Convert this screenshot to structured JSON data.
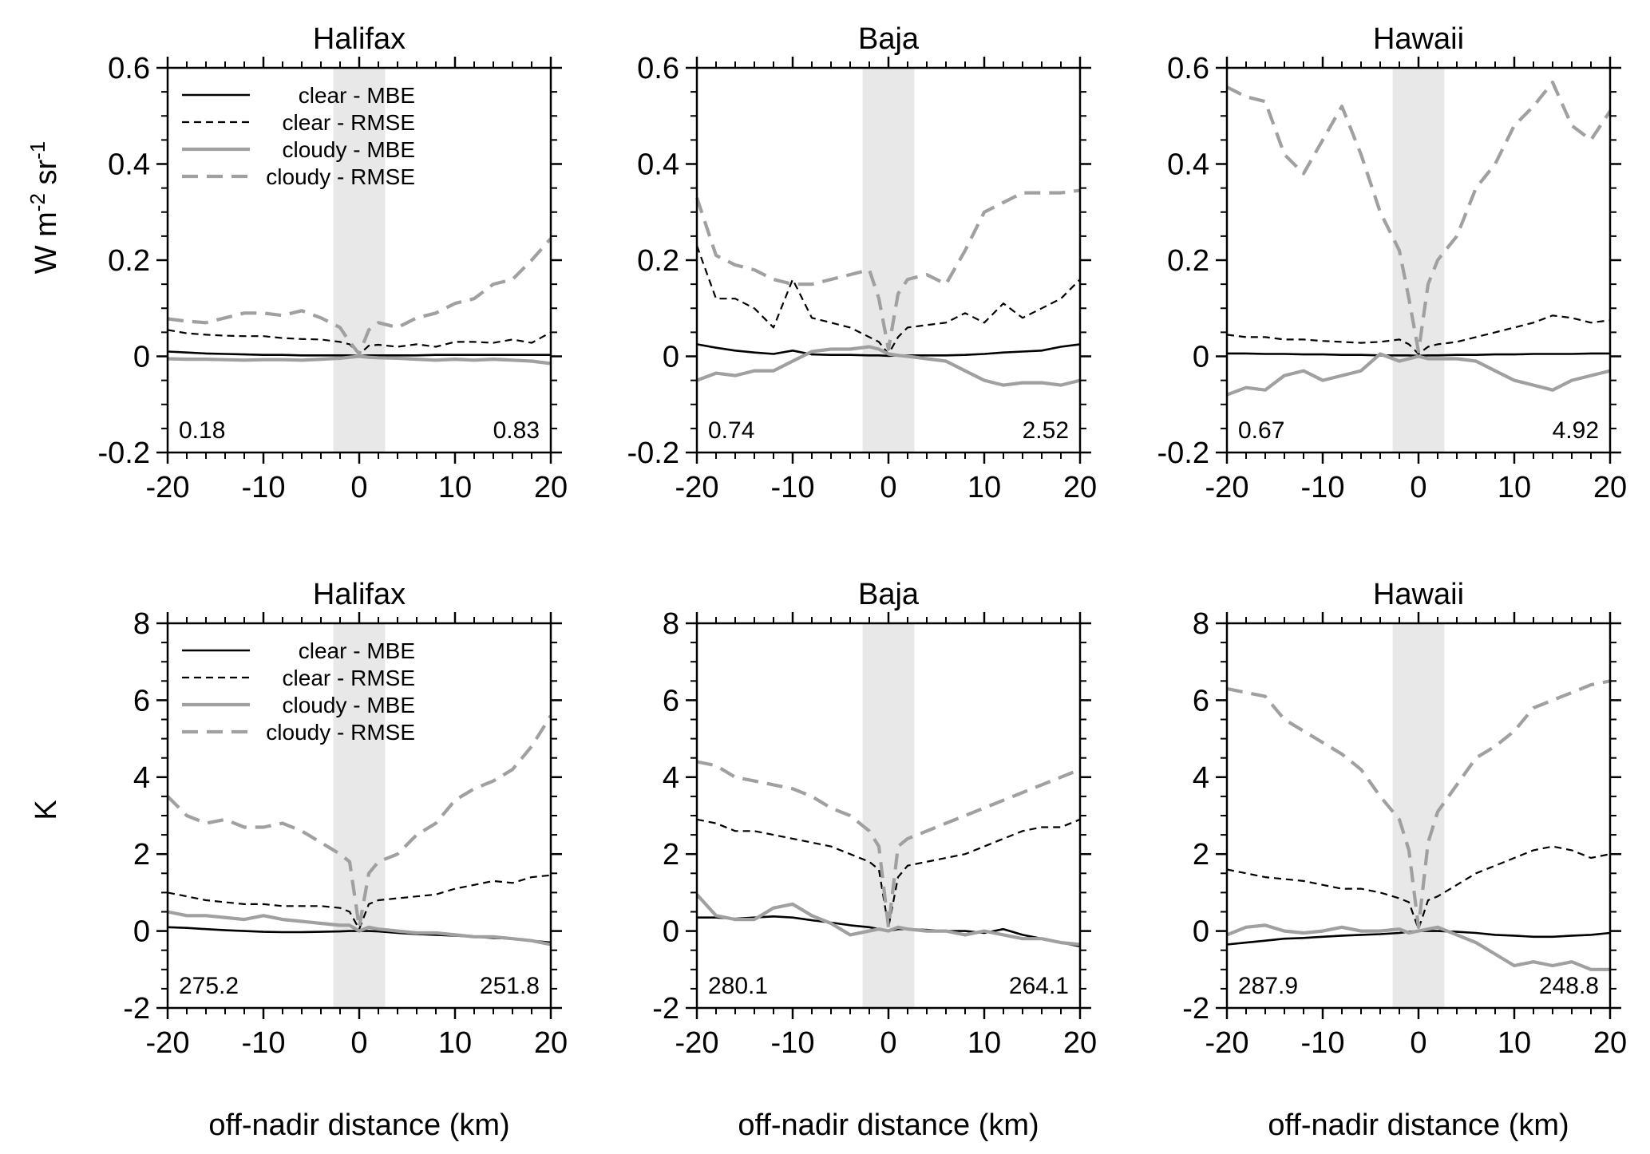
{
  "figure": {
    "top_ylabel_parts": [
      "W m",
      "-2",
      " sr",
      "-1"
    ],
    "bottom_ylabel": "K",
    "xlabel": "off-nadir distance (km)",
    "legend": [
      "clear - MBE",
      "clear - RMSE",
      "cloudy - MBE",
      "cloudy - RMSE"
    ],
    "colors": {
      "clear": "#000000",
      "cloudy": "#a0a0a0",
      "shade": "#e8e8e8"
    }
  },
  "chart_data": [
    {
      "type": "line",
      "title": "Halifax",
      "row": 0,
      "col": 0,
      "xlim": [
        -20,
        20
      ],
      "ylim": [
        -0.2,
        0.6
      ],
      "xticks": [
        "-20",
        "-10",
        "0",
        "10",
        "20"
      ],
      "yticks": [
        "-0.2",
        "0",
        "0.2",
        "0.4",
        "0.6"
      ],
      "shade": [
        -2.7,
        2.7
      ],
      "legend": true,
      "left_value": "0.18",
      "right_value": "0.83",
      "x": [
        -20,
        -18,
        -16,
        -14,
        -12,
        -10,
        -8,
        -6,
        -4,
        -2,
        -1,
        0,
        1,
        2,
        4,
        6,
        8,
        10,
        12,
        14,
        16,
        18,
        20
      ],
      "series": [
        {
          "name": "clear - MBE",
          "values": [
            0.01,
            0.008,
            0.006,
            0.005,
            0.004,
            0.003,
            0.003,
            0.002,
            0.002,
            0.002,
            0.002,
            0.001,
            0.002,
            0.002,
            0.002,
            0.002,
            0.003,
            0.003,
            0.003,
            0.003,
            0.003,
            0.003,
            0.003
          ]
        },
        {
          "name": "clear - RMSE",
          "values": [
            0.055,
            0.048,
            0.045,
            0.043,
            0.042,
            0.042,
            0.038,
            0.036,
            0.035,
            0.03,
            0.025,
            0.004,
            0.022,
            0.024,
            0.02,
            0.025,
            0.02,
            0.03,
            0.03,
            0.028,
            0.035,
            0.028,
            0.05
          ]
        },
        {
          "name": "cloudy - MBE",
          "values": [
            -0.005,
            -0.006,
            -0.006,
            -0.007,
            -0.008,
            -0.007,
            -0.007,
            -0.008,
            -0.006,
            -0.004,
            -0.002,
            0.0,
            -0.002,
            -0.003,
            -0.004,
            -0.006,
            -0.008,
            -0.006,
            -0.008,
            -0.006,
            -0.008,
            -0.01,
            -0.015
          ]
        },
        {
          "name": "cloudy - RMSE",
          "values": [
            0.078,
            0.073,
            0.07,
            0.08,
            0.09,
            0.09,
            0.085,
            0.095,
            0.08,
            0.06,
            0.03,
            0.005,
            0.055,
            0.07,
            0.06,
            0.08,
            0.09,
            0.11,
            0.12,
            0.15,
            0.16,
            0.2,
            0.245
          ]
        }
      ]
    },
    {
      "type": "line",
      "title": "Baja",
      "row": 0,
      "col": 1,
      "xlim": [
        -20,
        20
      ],
      "ylim": [
        -0.2,
        0.6
      ],
      "xticks": [
        "-20",
        "-10",
        "0",
        "10",
        "20"
      ],
      "yticks": [
        "-0.2",
        "0",
        "0.2",
        "0.4",
        "0.6"
      ],
      "shade": [
        -2.7,
        2.7
      ],
      "legend": false,
      "left_value": "0.74",
      "right_value": "2.52",
      "x": [
        -20,
        -18,
        -16,
        -14,
        -12,
        -10,
        -8,
        -6,
        -4,
        -2,
        -1,
        0,
        1,
        2,
        4,
        6,
        8,
        10,
        12,
        14,
        16,
        18,
        20
      ],
      "series": [
        {
          "name": "clear - MBE",
          "values": [
            0.025,
            0.018,
            0.012,
            0.008,
            0.005,
            0.012,
            0.004,
            0.003,
            0.003,
            0.002,
            0.002,
            0.001,
            0.002,
            0.002,
            0.002,
            0.002,
            0.003,
            0.005,
            0.008,
            0.01,
            0.012,
            0.02,
            0.025
          ]
        },
        {
          "name": "clear - RMSE",
          "values": [
            0.23,
            0.12,
            0.12,
            0.1,
            0.06,
            0.16,
            0.08,
            0.07,
            0.06,
            0.04,
            0.03,
            0.005,
            0.04,
            0.06,
            0.065,
            0.07,
            0.09,
            0.07,
            0.11,
            0.08,
            0.1,
            0.12,
            0.16
          ]
        },
        {
          "name": "cloudy - MBE",
          "values": [
            -0.05,
            -0.035,
            -0.04,
            -0.03,
            -0.03,
            -0.01,
            0.01,
            0.015,
            0.015,
            0.02,
            0.015,
            0.005,
            0.002,
            0.0,
            -0.005,
            -0.01,
            -0.03,
            -0.05,
            -0.06,
            -0.055,
            -0.055,
            -0.06,
            -0.05
          ]
        },
        {
          "name": "cloudy - RMSE",
          "values": [
            0.33,
            0.21,
            0.19,
            0.18,
            0.16,
            0.15,
            0.15,
            0.16,
            0.17,
            0.18,
            0.12,
            0.015,
            0.13,
            0.16,
            0.17,
            0.15,
            0.22,
            0.3,
            0.32,
            0.34,
            0.34,
            0.34,
            0.345
          ]
        }
      ]
    },
    {
      "type": "line",
      "title": "Hawaii",
      "row": 0,
      "col": 2,
      "xlim": [
        -20,
        20
      ],
      "ylim": [
        -0.2,
        0.6
      ],
      "xticks": [
        "-20",
        "-10",
        "0",
        "10",
        "20"
      ],
      "yticks": [
        "-0.2",
        "0",
        "0.2",
        "0.4",
        "0.6"
      ],
      "shade": [
        -2.7,
        2.7
      ],
      "legend": false,
      "left_value": "0.67",
      "right_value": "4.92",
      "x": [
        -20,
        -18,
        -16,
        -14,
        -12,
        -10,
        -8,
        -6,
        -4,
        -2,
        -1,
        0,
        1,
        2,
        4,
        6,
        8,
        10,
        12,
        14,
        16,
        18,
        20
      ],
      "series": [
        {
          "name": "clear - MBE",
          "values": [
            0.006,
            0.006,
            0.005,
            0.005,
            0.004,
            0.004,
            0.003,
            0.003,
            0.002,
            0.002,
            0.002,
            0.001,
            0.002,
            0.002,
            0.003,
            0.003,
            0.004,
            0.004,
            0.005,
            0.005,
            0.005,
            0.006,
            0.006
          ]
        },
        {
          "name": "clear - RMSE",
          "values": [
            0.045,
            0.04,
            0.04,
            0.035,
            0.035,
            0.032,
            0.03,
            0.028,
            0.03,
            0.035,
            0.025,
            0.005,
            0.02,
            0.025,
            0.03,
            0.04,
            0.05,
            0.06,
            0.07,
            0.085,
            0.08,
            0.07,
            0.075
          ]
        },
        {
          "name": "cloudy - MBE",
          "values": [
            -0.08,
            -0.065,
            -0.07,
            -0.04,
            -0.03,
            -0.05,
            -0.04,
            -0.03,
            0.005,
            -0.01,
            -0.005,
            0.0,
            -0.005,
            -0.005,
            -0.005,
            -0.01,
            -0.03,
            -0.05,
            -0.06,
            -0.07,
            -0.05,
            -0.04,
            -0.03
          ]
        },
        {
          "name": "cloudy - RMSE",
          "values": [
            0.56,
            0.54,
            0.53,
            0.42,
            0.38,
            0.45,
            0.52,
            0.42,
            0.3,
            0.22,
            0.12,
            0.01,
            0.15,
            0.2,
            0.25,
            0.35,
            0.4,
            0.48,
            0.52,
            0.57,
            0.48,
            0.45,
            0.51
          ]
        }
      ]
    },
    {
      "type": "line",
      "title": "Halifax",
      "row": 1,
      "col": 0,
      "xlim": [
        -20,
        20
      ],
      "ylim": [
        -2,
        8
      ],
      "xticks": [
        "-20",
        "-10",
        "0",
        "10",
        "20"
      ],
      "yticks": [
        "-2",
        "0",
        "2",
        "4",
        "6",
        "8"
      ],
      "shade": [
        -2.7,
        2.7
      ],
      "legend": true,
      "left_value": "275.2",
      "right_value": "251.8",
      "x": [
        -20,
        -18,
        -16,
        -14,
        -12,
        -10,
        -8,
        -6,
        -4,
        -2,
        -1,
        0,
        1,
        2,
        4,
        6,
        8,
        10,
        12,
        14,
        16,
        18,
        20
      ],
      "series": [
        {
          "name": "clear - MBE",
          "values": [
            0.1,
            0.08,
            0.05,
            0.02,
            0.0,
            -0.02,
            -0.03,
            -0.03,
            -0.02,
            -0.01,
            0.0,
            0.0,
            0.0,
            -0.01,
            -0.05,
            -0.08,
            -0.1,
            -0.12,
            -0.15,
            -0.18,
            -0.2,
            -0.25,
            -0.3
          ]
        },
        {
          "name": "clear - RMSE",
          "values": [
            1.0,
            0.9,
            0.8,
            0.75,
            0.7,
            0.7,
            0.65,
            0.65,
            0.65,
            0.6,
            0.5,
            0.05,
            0.7,
            0.8,
            0.85,
            0.9,
            0.95,
            1.1,
            1.2,
            1.3,
            1.25,
            1.4,
            1.45
          ]
        },
        {
          "name": "cloudy - MBE",
          "values": [
            0.5,
            0.4,
            0.4,
            0.35,
            0.3,
            0.4,
            0.3,
            0.25,
            0.2,
            0.15,
            0.15,
            0.0,
            0.1,
            0.05,
            0.0,
            -0.05,
            -0.05,
            -0.1,
            -0.15,
            -0.15,
            -0.2,
            -0.25,
            -0.35
          ]
        },
        {
          "name": "cloudy - RMSE",
          "values": [
            3.5,
            3.0,
            2.8,
            2.9,
            2.7,
            2.7,
            2.8,
            2.6,
            2.3,
            2.0,
            1.8,
            0.1,
            1.5,
            1.8,
            2.0,
            2.5,
            2.8,
            3.4,
            3.7,
            3.9,
            4.2,
            4.8,
            5.6
          ]
        }
      ]
    },
    {
      "type": "line",
      "title": "Baja",
      "row": 1,
      "col": 1,
      "xlim": [
        -20,
        20
      ],
      "ylim": [
        -2,
        8
      ],
      "xticks": [
        "-20",
        "-10",
        "0",
        "10",
        "20"
      ],
      "yticks": [
        "-2",
        "0",
        "2",
        "4",
        "6",
        "8"
      ],
      "shade": [
        -2.7,
        2.7
      ],
      "legend": false,
      "left_value": "280.1",
      "right_value": "264.1",
      "x": [
        -20,
        -18,
        -16,
        -14,
        -12,
        -10,
        -8,
        -6,
        -4,
        -2,
        -1,
        0,
        1,
        2,
        4,
        6,
        8,
        10,
        12,
        14,
        16,
        18,
        20
      ],
      "series": [
        {
          "name": "clear - MBE",
          "values": [
            0.35,
            0.35,
            0.32,
            0.35,
            0.38,
            0.35,
            0.28,
            0.22,
            0.15,
            0.1,
            0.05,
            0.0,
            0.05,
            0.05,
            0.03,
            0.0,
            0.0,
            -0.05,
            0.05,
            -0.1,
            -0.2,
            -0.3,
            -0.4
          ]
        },
        {
          "name": "clear - RMSE",
          "values": [
            2.9,
            2.8,
            2.6,
            2.6,
            2.5,
            2.4,
            2.3,
            2.2,
            2.0,
            1.8,
            1.6,
            0.1,
            1.4,
            1.7,
            1.8,
            1.9,
            2.0,
            2.2,
            2.4,
            2.6,
            2.7,
            2.7,
            2.9
          ]
        },
        {
          "name": "cloudy - MBE",
          "values": [
            0.95,
            0.4,
            0.3,
            0.3,
            0.6,
            0.7,
            0.4,
            0.2,
            -0.1,
            0.0,
            0.05,
            0.0,
            0.1,
            0.05,
            0.0,
            0.0,
            -0.1,
            0.0,
            -0.1,
            -0.2,
            -0.2,
            -0.3,
            -0.35
          ]
        },
        {
          "name": "cloudy - RMSE",
          "values": [
            4.4,
            4.3,
            4.0,
            3.9,
            3.8,
            3.7,
            3.5,
            3.2,
            3.0,
            2.6,
            2.2,
            0.1,
            2.2,
            2.4,
            2.6,
            2.8,
            3.0,
            3.2,
            3.4,
            3.6,
            3.8,
            4.0,
            4.2
          ]
        }
      ]
    },
    {
      "type": "line",
      "title": "Hawaii",
      "row": 1,
      "col": 2,
      "xlim": [
        -20,
        20
      ],
      "ylim": [
        -2,
        8
      ],
      "xticks": [
        "-20",
        "-10",
        "0",
        "10",
        "20"
      ],
      "yticks": [
        "-2",
        "0",
        "2",
        "4",
        "6",
        "8"
      ],
      "shade": [
        -2.7,
        2.7
      ],
      "legend": false,
      "left_value": "287.9",
      "right_value": "248.8",
      "x": [
        -20,
        -18,
        -16,
        -14,
        -12,
        -10,
        -8,
        -6,
        -4,
        -2,
        -1,
        0,
        1,
        2,
        4,
        6,
        8,
        10,
        12,
        14,
        16,
        18,
        20
      ],
      "series": [
        {
          "name": "clear - MBE",
          "values": [
            -0.35,
            -0.3,
            -0.25,
            -0.2,
            -0.18,
            -0.15,
            -0.12,
            -0.1,
            -0.08,
            -0.05,
            -0.02,
            0.0,
            0.0,
            0.0,
            -0.02,
            -0.05,
            -0.1,
            -0.12,
            -0.15,
            -0.15,
            -0.12,
            -0.1,
            -0.05
          ]
        },
        {
          "name": "clear - RMSE",
          "values": [
            1.6,
            1.5,
            1.4,
            1.35,
            1.3,
            1.2,
            1.1,
            1.1,
            1.0,
            0.85,
            0.75,
            0.05,
            0.8,
            0.9,
            1.2,
            1.5,
            1.7,
            1.9,
            2.1,
            2.2,
            2.1,
            1.9,
            2.0
          ]
        },
        {
          "name": "cloudy - MBE",
          "values": [
            -0.1,
            0.1,
            0.15,
            0.0,
            -0.05,
            0.0,
            0.1,
            0.0,
            0.0,
            0.05,
            -0.05,
            0.0,
            0.05,
            0.1,
            -0.1,
            -0.3,
            -0.6,
            -0.9,
            -0.8,
            -0.9,
            -0.8,
            -1.0,
            -1.0
          ]
        },
        {
          "name": "cloudy - RMSE",
          "values": [
            6.3,
            6.2,
            6.1,
            5.5,
            5.2,
            4.9,
            4.6,
            4.2,
            3.5,
            2.9,
            2.1,
            0.1,
            2.3,
            3.1,
            3.8,
            4.5,
            4.8,
            5.2,
            5.8,
            6.0,
            6.2,
            6.4,
            6.5
          ]
        }
      ]
    }
  ]
}
